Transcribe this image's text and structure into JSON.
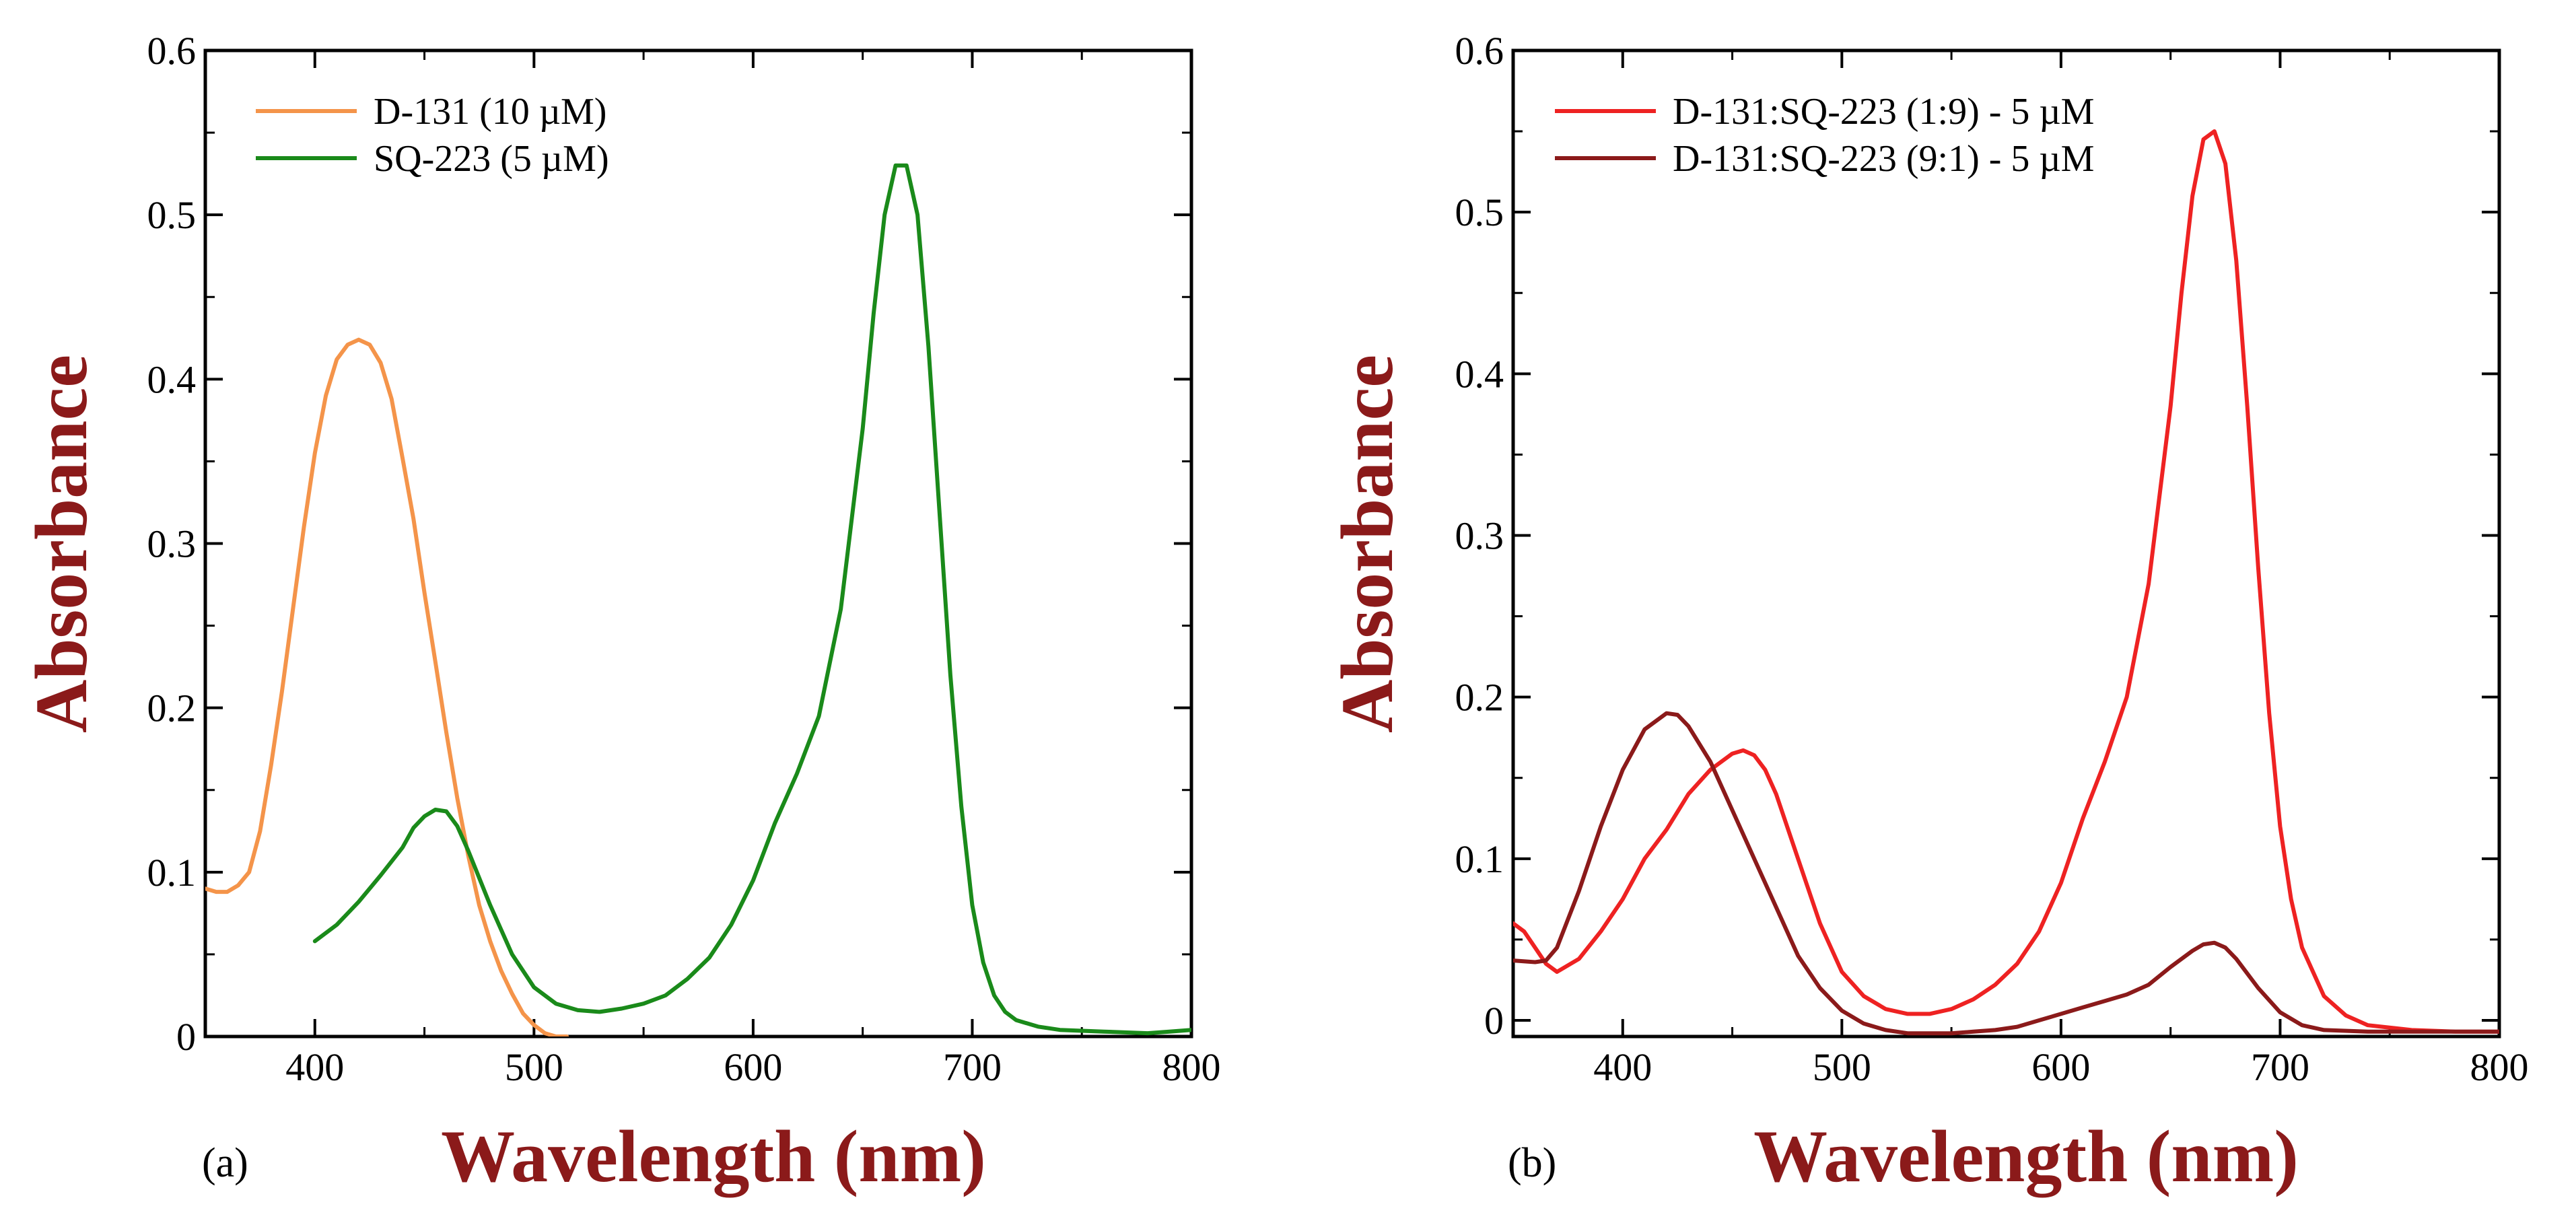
{
  "chart_data": [
    {
      "id": "a",
      "type": "line",
      "panel_label": "(a)",
      "xlabel": "Wavelength (nm)",
      "ylabel": "Absorbance",
      "xlim": [
        350,
        800
      ],
      "ylim": [
        0,
        0.6
      ],
      "xticks": [
        400,
        500,
        600,
        700,
        800
      ],
      "yticks": [
        0,
        0.1,
        0.2,
        0.3,
        0.4,
        0.5,
        0.6
      ],
      "ytick_labels": [
        "0",
        "0.1",
        "0.2",
        "0.3",
        "0.4",
        "0.5",
        "0.6"
      ],
      "label_color": "#8b1a1a",
      "legend_position": "top-left",
      "series": [
        {
          "name": "D-131 (10 µM)",
          "color": "#f4944a",
          "x": [
            350,
            355,
            360,
            365,
            370,
            375,
            380,
            385,
            390,
            395,
            400,
            405,
            410,
            415,
            420,
            425,
            430,
            435,
            440,
            445,
            450,
            455,
            460,
            465,
            470,
            475,
            480,
            485,
            490,
            495,
            500,
            505,
            510,
            515
          ],
          "y": [
            0.09,
            0.088,
            0.088,
            0.092,
            0.1,
            0.125,
            0.165,
            0.21,
            0.26,
            0.31,
            0.355,
            0.39,
            0.412,
            0.421,
            0.424,
            0.421,
            0.41,
            0.388,
            0.352,
            0.315,
            0.27,
            0.228,
            0.185,
            0.145,
            0.11,
            0.08,
            0.058,
            0.04,
            0.026,
            0.014,
            0.007,
            0.002,
            0.0,
            0.0
          ]
        },
        {
          "name": "SQ-223 (5 µM)",
          "color": "#1a8a1a",
          "x": [
            400,
            410,
            420,
            430,
            440,
            445,
            450,
            455,
            460,
            465,
            470,
            480,
            490,
            500,
            510,
            520,
            530,
            540,
            550,
            560,
            570,
            580,
            590,
            600,
            610,
            620,
            630,
            640,
            650,
            655,
            660,
            665,
            670,
            675,
            680,
            685,
            690,
            695,
            700,
            705,
            710,
            715,
            720,
            730,
            740,
            760,
            780,
            790,
            800
          ],
          "y": [
            0.058,
            0.068,
            0.082,
            0.098,
            0.115,
            0.127,
            0.134,
            0.138,
            0.137,
            0.128,
            0.113,
            0.08,
            0.05,
            0.03,
            0.02,
            0.016,
            0.015,
            0.017,
            0.02,
            0.025,
            0.035,
            0.048,
            0.068,
            0.095,
            0.13,
            0.16,
            0.195,
            0.26,
            0.37,
            0.44,
            0.5,
            0.53,
            0.53,
            0.5,
            0.42,
            0.32,
            0.22,
            0.14,
            0.08,
            0.045,
            0.025,
            0.015,
            0.01,
            0.006,
            0.004,
            0.003,
            0.002,
            0.003,
            0.004
          ]
        }
      ]
    },
    {
      "id": "b",
      "type": "line",
      "panel_label": "(b)",
      "xlabel": "Wavelength (nm)",
      "ylabel": "Absorbance",
      "xlim": [
        350,
        800
      ],
      "ylim": [
        -0.01,
        0.6
      ],
      "xticks": [
        400,
        500,
        600,
        700,
        800
      ],
      "yticks": [
        0,
        0.1,
        0.2,
        0.3,
        0.4,
        0.5,
        0.6
      ],
      "ytick_labels": [
        "0",
        "0.1",
        "0.2",
        "0.3",
        "0.4",
        "0.5",
        "0.6"
      ],
      "label_color": "#8b1a1a",
      "legend_position": "top-left",
      "series": [
        {
          "name": "D-131:SQ-223 (1:9) - 5 µM",
          "color": "#ee2222",
          "x": [
            350,
            355,
            360,
            365,
            370,
            380,
            390,
            400,
            410,
            420,
            430,
            440,
            450,
            455,
            460,
            465,
            470,
            480,
            490,
            500,
            510,
            520,
            530,
            540,
            550,
            560,
            570,
            580,
            590,
            600,
            610,
            620,
            630,
            640,
            650,
            655,
            660,
            665,
            670,
            675,
            680,
            685,
            690,
            695,
            700,
            705,
            710,
            720,
            730,
            740,
            760,
            780,
            800
          ],
          "y": [
            0.06,
            0.055,
            0.045,
            0.035,
            0.03,
            0.038,
            0.055,
            0.075,
            0.1,
            0.118,
            0.14,
            0.155,
            0.165,
            0.167,
            0.164,
            0.155,
            0.14,
            0.1,
            0.06,
            0.03,
            0.015,
            0.007,
            0.004,
            0.004,
            0.007,
            0.013,
            0.022,
            0.035,
            0.055,
            0.085,
            0.125,
            0.16,
            0.2,
            0.27,
            0.38,
            0.45,
            0.51,
            0.545,
            0.55,
            0.53,
            0.47,
            0.38,
            0.28,
            0.19,
            0.12,
            0.075,
            0.045,
            0.015,
            0.003,
            -0.003,
            -0.006,
            -0.007,
            -0.007
          ]
        },
        {
          "name": "D-131:SQ-223 (9:1) - 5 µM",
          "color": "#8b1a1a",
          "x": [
            350,
            360,
            365,
            370,
            380,
            390,
            400,
            410,
            420,
            425,
            430,
            440,
            450,
            460,
            470,
            480,
            490,
            500,
            510,
            520,
            530,
            540,
            550,
            560,
            570,
            580,
            590,
            600,
            610,
            620,
            630,
            640,
            650,
            660,
            665,
            670,
            675,
            680,
            690,
            700,
            710,
            720,
            740,
            760,
            780,
            800
          ],
          "y": [
            0.037,
            0.036,
            0.037,
            0.045,
            0.08,
            0.12,
            0.155,
            0.18,
            0.19,
            0.189,
            0.182,
            0.16,
            0.13,
            0.1,
            0.07,
            0.04,
            0.02,
            0.006,
            -0.002,
            -0.006,
            -0.008,
            -0.008,
            -0.008,
            -0.007,
            -0.006,
            -0.004,
            0.0,
            0.004,
            0.008,
            0.012,
            0.016,
            0.022,
            0.033,
            0.043,
            0.047,
            0.048,
            0.045,
            0.038,
            0.02,
            0.005,
            -0.003,
            -0.006,
            -0.007,
            -0.007,
            -0.007,
            -0.007
          ]
        }
      ]
    }
  ]
}
